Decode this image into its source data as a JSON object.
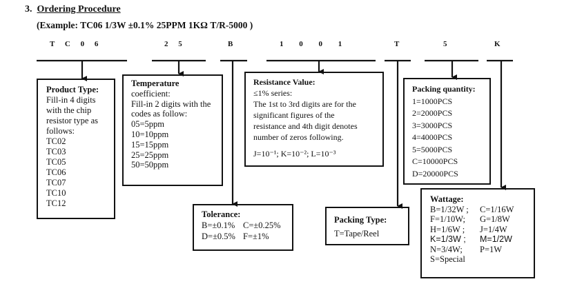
{
  "heading": {
    "number": "3.",
    "title": "Ordering Procedure"
  },
  "example": "(Example: TC06 1/3W ±0.1% 25PPM 1KΩ T/R-5000 )",
  "codes": [
    "T C 0 6",
    "2 5",
    "B",
    "1 0 0 1",
    "T",
    "5",
    "K"
  ],
  "product_type": {
    "title": "Product Type:",
    "lines": [
      "Fill-in 4 digits",
      "with the chip",
      "resistor type as",
      "follows:",
      "TC02",
      "TC03",
      "TC05",
      "TC06",
      "TC07",
      "TC10",
      "TC12"
    ]
  },
  "temperature": {
    "title": "Temperature",
    "lines": [
      "coefficient:",
      "Fill-in 2 digits with the",
      "codes as follow:",
      "05=5ppm",
      "10=10ppm",
      "15=15ppm",
      "25=25ppm",
      "50=50ppm"
    ]
  },
  "resistance": {
    "title": "Resistance Value:",
    "lines": [
      "≤1% series:",
      "The 1st to 3rd digits are for the",
      "significant figures of the",
      "resistance and 4th digit denotes",
      "number of zeros following."
    ],
    "multipliers": "J=10⁻¹; K=10⁻²; L=10⁻³"
  },
  "tolerance": {
    "title": "Tolerance:",
    "rows": [
      [
        "B=±0.1%",
        "C=±0.25%"
      ],
      [
        "D=±0.5%",
        "F=±1%"
      ]
    ]
  },
  "packing_type": {
    "title": "Packing Type:",
    "lines": [
      "T=Tape/Reel"
    ]
  },
  "packing_quantity": {
    "title": "Packing quantity:",
    "lines": [
      "1=1000PCS",
      "2=2000PCS",
      "3=3000PCS",
      "4=4000PCS",
      "5=5000PCS",
      "C=10000PCS",
      "D=20000PCS"
    ]
  },
  "wattage": {
    "title": "Wattage:",
    "rows": [
      [
        "B=1/32W ;",
        "C=1/16W"
      ],
      [
        "F=1/10W;",
        "G=1/8W"
      ],
      [
        "H=1/6W ;",
        "J=1/4W"
      ],
      [
        "K=1/3W ;",
        "M=1/2W"
      ],
      [
        "N=3/4W;",
        "P=1W"
      ],
      [
        "S=Special",
        ""
      ]
    ]
  }
}
